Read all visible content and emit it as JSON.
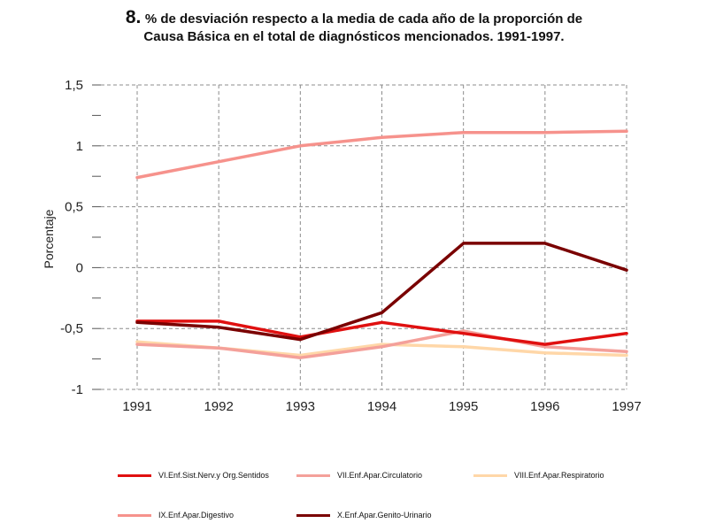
{
  "title": {
    "number": "8.",
    "line1": "% de desviación respecto a la media de cada año de la proporción de",
    "line2": "Causa Básica en el total de diagnósticos mencionados. 1991-1997."
  },
  "chart_data": {
    "type": "line",
    "ylabel": "Porcentaje",
    "xlabel": "",
    "x": [
      "1991",
      "1992",
      "1993",
      "1994",
      "1995",
      "1996",
      "1997"
    ],
    "ylim": [
      -1,
      1.5
    ],
    "y_ticks": [
      {
        "value": 1.5,
        "label": "1,5"
      },
      {
        "value": 1.25,
        "label": "-"
      },
      {
        "value": 1,
        "label": "1"
      },
      {
        "value": 0.75,
        "label": "-"
      },
      {
        "value": 0.5,
        "label": "0,5"
      },
      {
        "value": 0.25,
        "label": "-"
      },
      {
        "value": 0,
        "label": "0"
      },
      {
        "value": -0.25,
        "label": "-"
      },
      {
        "value": -0.5,
        "label": "-0,5"
      },
      {
        "value": -0.75,
        "label": "-"
      },
      {
        "value": -1,
        "label": "-1"
      }
    ],
    "grid": true,
    "legend_position": "bottom",
    "series": [
      {
        "name": "VIII.Enf.Apar.Respiratorio",
        "color": "#ffd7a8",
        "values": [
          -0.61,
          -0.66,
          -0.72,
          -0.63,
          -0.65,
          -0.7,
          -0.72
        ]
      },
      {
        "name": "VII.Enf.Apar.Circulatorio",
        "color": "#f4a09a",
        "values": [
          -0.63,
          -0.66,
          -0.74,
          -0.65,
          -0.52,
          -0.65,
          -0.69
        ]
      },
      {
        "name": "IX.Enf.Apar.Digestivo",
        "color": "#f6928c",
        "values": [
          0.74,
          0.87,
          1.0,
          1.07,
          1.11,
          1.11,
          1.12
        ]
      },
      {
        "name": "VI.Enf.Sist.Nerv.y Org.Sentidos",
        "color": "#e01010",
        "values": [
          -0.44,
          -0.44,
          -0.57,
          -0.45,
          -0.54,
          -0.63,
          -0.54
        ]
      },
      {
        "name": "X.Enf.Apar.Genito-Urinario",
        "color": "#7a0000",
        "values": [
          -0.45,
          -0.49,
          -0.59,
          -0.37,
          0.2,
          0.2,
          -0.02
        ]
      }
    ],
    "legend_order": [
      "VI.Enf.Sist.Nerv.y Org.Sentidos",
      "VII.Enf.Apar.Circulatorio",
      "VIII.Enf.Apar.Respiratorio",
      "IX.Enf.Apar.Digestivo",
      "X.Enf.Apar.Genito-Urinario"
    ]
  }
}
